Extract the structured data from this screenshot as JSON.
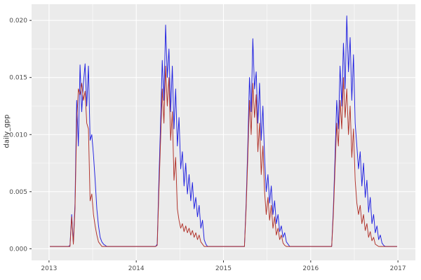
{
  "figure": {
    "background": "#FFFFFF",
    "panel_background": "#EBEBEB",
    "gridline_color": "#FFFFFF",
    "tick_color": "#333333",
    "tick_label_color": "#4D4D4D",
    "axis_title_color": "#333333"
  },
  "chart_data": {
    "type": "line",
    "title": "",
    "xlabel": "",
    "ylabel": "daily_gpp",
    "legend": "none",
    "grid": "on",
    "x_axis": {
      "domain": [
        2012.8,
        2017.2
      ],
      "ticks": [
        2013,
        2014,
        2015,
        2016,
        2017
      ],
      "tick_labels": [
        "2013",
        "2014",
        "2015",
        "2016",
        "2017"
      ],
      "minor_ticks": [
        2013.5,
        2014.5,
        2015.5,
        2016.5
      ]
    },
    "y_axis": {
      "domain": [
        -0.00102,
        0.02142
      ],
      "ticks": [
        0,
        0.005,
        0.01,
        0.015,
        0.02
      ],
      "tick_labels": [
        "0.000",
        "0.005",
        "0.010",
        "0.015",
        "0.020"
      ],
      "minor_ticks": [
        0.0025,
        0.0075,
        0.0125,
        0.0175
      ]
    },
    "x_start": 2013.0096,
    "x_step": 0.01923076923,
    "series": [
      {
        "name": "series-line-blue",
        "color": "#1F1FE0",
        "values": [
          0.0002,
          0.0002,
          0.0002,
          0.0002,
          0.0002,
          0.0002,
          0.0002,
          0.0002,
          0.0002,
          0.0002,
          0.0002,
          0.0002,
          0.0003,
          0.003,
          0.0005,
          0.004,
          0.013,
          0.009,
          0.0161,
          0.012,
          0.0145,
          0.0162,
          0.0125,
          0.016,
          0.0095,
          0.01,
          0.0082,
          0.006,
          0.0035,
          0.002,
          0.001,
          0.0006,
          0.0004,
          0.0003,
          0.0002,
          0.0002,
          0.0002,
          0.0002,
          0.0002,
          0.0002,
          0.0002,
          0.0002,
          0.0002,
          0.0002,
          0.0002,
          0.0002,
          0.0002,
          0.0002,
          0.0002,
          0.0002,
          0.0002,
          0.0002,
          0.0002,
          0.0002,
          0.0002,
          0.0002,
          0.0002,
          0.0002,
          0.0002,
          0.0002,
          0.0002,
          0.0002,
          0.0002,
          0.0002,
          0.0004,
          0.006,
          0.011,
          0.0165,
          0.013,
          0.0196,
          0.015,
          0.0175,
          0.012,
          0.016,
          0.0105,
          0.014,
          0.009,
          0.0115,
          0.007,
          0.0085,
          0.0055,
          0.0075,
          0.0048,
          0.0065,
          0.0042,
          0.0058,
          0.0035,
          0.0045,
          0.0028,
          0.0038,
          0.0018,
          0.0025,
          0.0008,
          0.0004,
          0.0002,
          0.0002,
          0.0002,
          0.0002,
          0.0002,
          0.0002,
          0.0002,
          0.0002,
          0.0002,
          0.0002,
          0.0002,
          0.0002,
          0.0002,
          0.0002,
          0.0002,
          0.0002,
          0.0002,
          0.0002,
          0.0002,
          0.0002,
          0.0002,
          0.0002,
          0.0002,
          0.004,
          0.009,
          0.015,
          0.012,
          0.0184,
          0.014,
          0.0155,
          0.011,
          0.0145,
          0.0095,
          0.0125,
          0.008,
          0.005,
          0.0065,
          0.004,
          0.0055,
          0.003,
          0.0042,
          0.0022,
          0.003,
          0.0015,
          0.002,
          0.001,
          0.0014,
          0.0006,
          0.0004,
          0.0002,
          0.0002,
          0.0002,
          0.0002,
          0.0002,
          0.0002,
          0.0002,
          0.0002,
          0.0002,
          0.0002,
          0.0002,
          0.0002,
          0.0002,
          0.0002,
          0.0002,
          0.0002,
          0.0002,
          0.0002,
          0.0002,
          0.0002,
          0.0002,
          0.0002,
          0.0002,
          0.0002,
          0.0002,
          0.0002,
          0.0035,
          0.008,
          0.013,
          0.0105,
          0.016,
          0.0125,
          0.018,
          0.014,
          0.0204,
          0.0155,
          0.0185,
          0.013,
          0.017,
          0.011,
          0.009,
          0.007,
          0.0085,
          0.0055,
          0.0075,
          0.0045,
          0.006,
          0.0032,
          0.0045,
          0.0022,
          0.003,
          0.0014,
          0.002,
          0.0008,
          0.0012,
          0.0005,
          0.0003,
          0.0002,
          0.0002,
          0.0002,
          0.0002,
          0.0002,
          0.0002,
          0.0002,
          0.0002
        ]
      },
      {
        "name": "series-line-red",
        "color": "#B03028",
        "values": [
          0.0002,
          0.0002,
          0.0002,
          0.0002,
          0.0002,
          0.0002,
          0.0002,
          0.0002,
          0.0002,
          0.0002,
          0.0002,
          0.0002,
          0.0002,
          0.0028,
          0.0004,
          0.0035,
          0.011,
          0.014,
          0.0135,
          0.0145,
          0.013,
          0.0138,
          0.011,
          0.0105,
          0.0042,
          0.0048,
          0.003,
          0.002,
          0.0012,
          0.0006,
          0.0004,
          0.0002,
          0.0002,
          0.0002,
          0.0002,
          0.0002,
          0.0002,
          0.0002,
          0.0002,
          0.0002,
          0.0002,
          0.0002,
          0.0002,
          0.0002,
          0.0002,
          0.0002,
          0.0002,
          0.0002,
          0.0002,
          0.0002,
          0.0002,
          0.0002,
          0.0002,
          0.0002,
          0.0002,
          0.0002,
          0.0002,
          0.0002,
          0.0002,
          0.0002,
          0.0002,
          0.0002,
          0.0002,
          0.0002,
          0.0003,
          0.005,
          0.0095,
          0.014,
          0.011,
          0.016,
          0.0125,
          0.015,
          0.0095,
          0.012,
          0.006,
          0.008,
          0.0035,
          0.0025,
          0.0018,
          0.0022,
          0.0015,
          0.002,
          0.0014,
          0.0018,
          0.0012,
          0.0016,
          0.001,
          0.0014,
          0.0008,
          0.0012,
          0.0006,
          0.0004,
          0.0002,
          0.0002,
          0.0002,
          0.0002,
          0.0002,
          0.0002,
          0.0002,
          0.0002,
          0.0002,
          0.0002,
          0.0002,
          0.0002,
          0.0002,
          0.0002,
          0.0002,
          0.0002,
          0.0002,
          0.0002,
          0.0002,
          0.0002,
          0.0002,
          0.0002,
          0.0002,
          0.0002,
          0.0002,
          0.0035,
          0.008,
          0.013,
          0.01,
          0.0145,
          0.0115,
          0.0135,
          0.0085,
          0.011,
          0.0065,
          0.009,
          0.005,
          0.003,
          0.0045,
          0.0025,
          0.0038,
          0.0018,
          0.0028,
          0.0012,
          0.0018,
          0.0008,
          0.0012,
          0.0005,
          0.0003,
          0.0002,
          0.0002,
          0.0002,
          0.0002,
          0.0002,
          0.0002,
          0.0002,
          0.0002,
          0.0002,
          0.0002,
          0.0002,
          0.0002,
          0.0002,
          0.0002,
          0.0002,
          0.0002,
          0.0002,
          0.0002,
          0.0002,
          0.0002,
          0.0002,
          0.0002,
          0.0002,
          0.0002,
          0.0002,
          0.0002,
          0.0002,
          0.0002,
          0.003,
          0.007,
          0.011,
          0.009,
          0.013,
          0.0105,
          0.015,
          0.0115,
          0.014,
          0.01,
          0.0125,
          0.008,
          0.0105,
          0.006,
          0.004,
          0.003,
          0.0038,
          0.0022,
          0.003,
          0.0016,
          0.0022,
          0.001,
          0.0015,
          0.0007,
          0.001,
          0.0004,
          0.0003,
          0.0002,
          0.0002,
          0.0002,
          0.0002,
          0.0002,
          0.0002,
          0.0002,
          0.0002,
          0.0002,
          0.0002,
          0.0002,
          0.0002
        ]
      }
    ]
  }
}
